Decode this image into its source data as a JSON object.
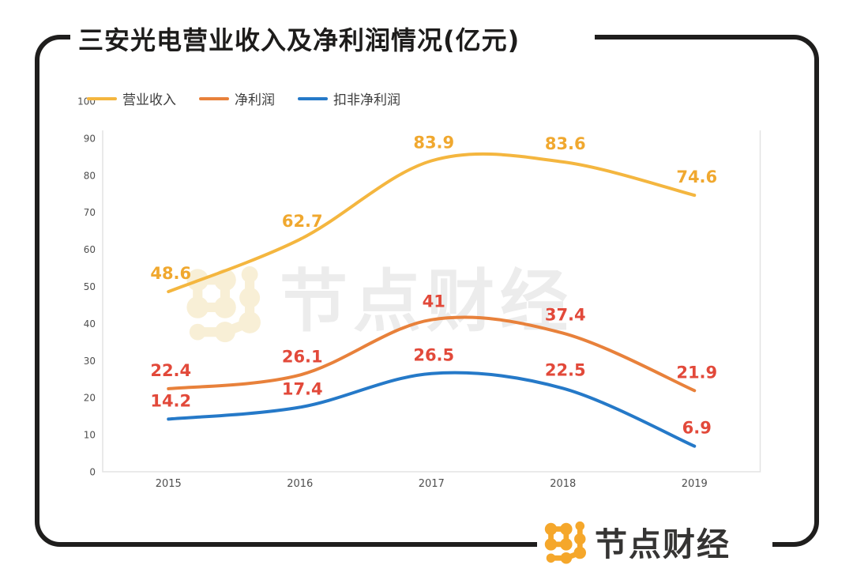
{
  "header": {
    "title": "三安光电营业收入及净利润情况(亿元)"
  },
  "watermark": {
    "text": "节点财经"
  },
  "footer": {
    "brand": "节点财经"
  },
  "colors": {
    "frame": "#1f1e1d",
    "axis_line": "#e3e3e3",
    "axis_text": "#4e4e4e",
    "value_label_red": "#e2493a",
    "value_label_yellow": "#f0a82f",
    "logo_orange": "#f5a72b",
    "watermark_icon": "#f8efd6",
    "watermark_text": "#ececec"
  },
  "chart_data": {
    "type": "line",
    "title": "三安光电营业收入及净利润情况(亿元)",
    "x": [
      "2015",
      "2016",
      "2017",
      "2018",
      "2019"
    ],
    "series": [
      {
        "key": "revenue",
        "name": "营业收入",
        "color": "#f4b63f",
        "label_color": "#f0a82f",
        "values": [
          48.6,
          62.7,
          83.9,
          83.6,
          74.6
        ]
      },
      {
        "key": "net-profit",
        "name": "净利润",
        "color": "#e8813b",
        "label_color": "#e2493a",
        "values": [
          22.4,
          26.1,
          41,
          37.4,
          21.9
        ]
      },
      {
        "key": "non-gaap-net-profit",
        "name": "扣非净利润",
        "color": "#2579c8",
        "label_color": "#e2493a",
        "values": [
          14.2,
          17.4,
          26.5,
          22.5,
          6.9
        ]
      }
    ],
    "xlabel": "",
    "ylabel": "",
    "ylim": [
      0,
      100
    ],
    "yticks": [
      0,
      10,
      20,
      30,
      40,
      50,
      60,
      70,
      80,
      90,
      100
    ],
    "grid": false,
    "smooth": true,
    "legend_position": "top-left"
  }
}
